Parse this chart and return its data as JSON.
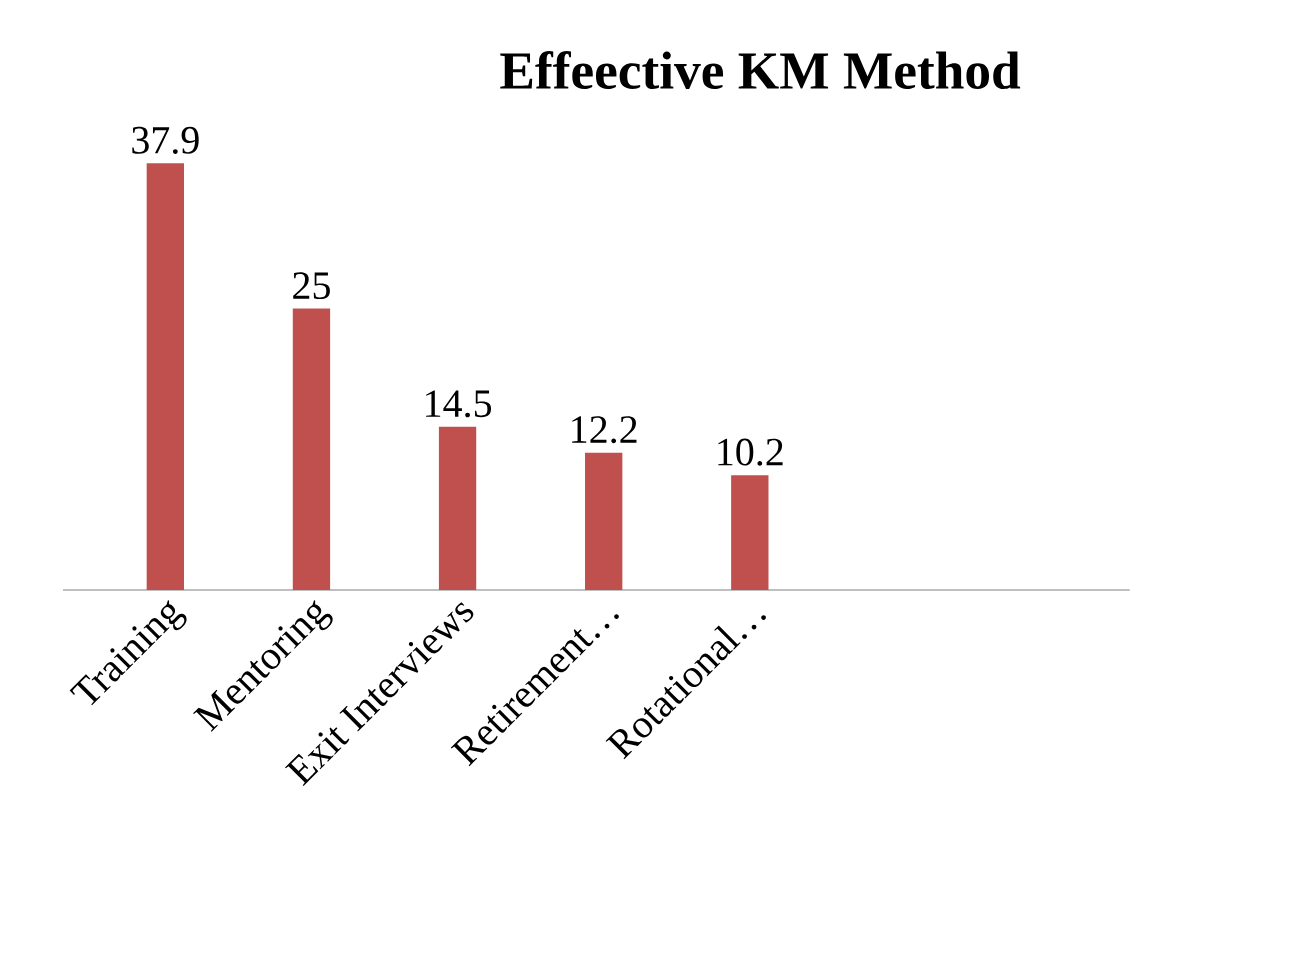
{
  "chart_data": {
    "type": "bar",
    "title": "Effeective KM Method",
    "categories": [
      "Training",
      "Mentoring",
      "Exit Interviews",
      "Retirement…",
      "Rotational…"
    ],
    "values": [
      37.9,
      25,
      14.5,
      12.2,
      10.2
    ],
    "color": "#c0504d",
    "data_labels": true
  }
}
